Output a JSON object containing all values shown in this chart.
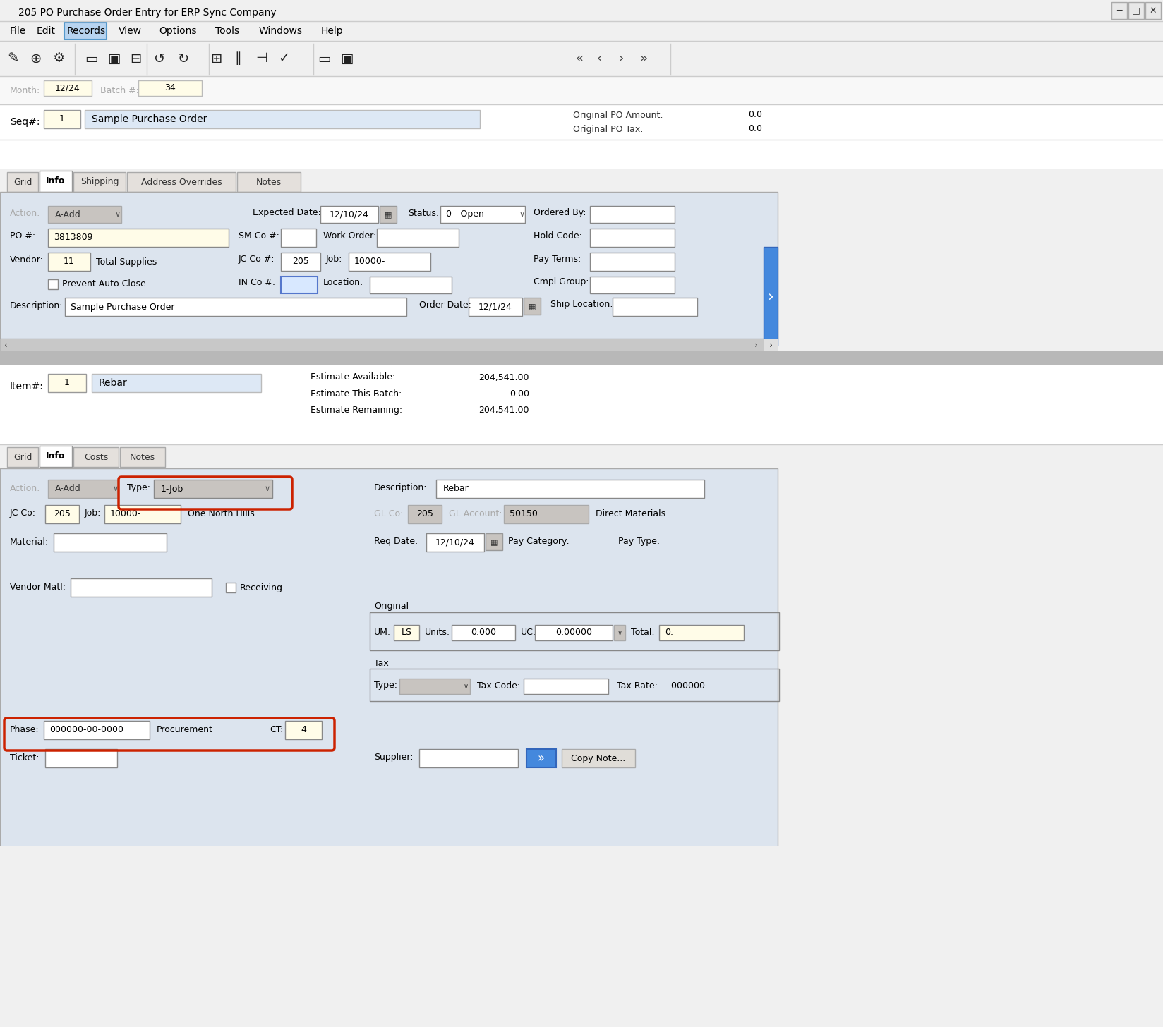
{
  "title": "205 PO Purchase Order Entry for ERP Sync Company",
  "menu_items": [
    "File",
    "Edit",
    "Records",
    "View",
    "Options",
    "Tools",
    "Windows",
    "Help"
  ],
  "active_menu": "Records",
  "month_val": "12/24",
  "batch_val": "34",
  "seq_val": "1",
  "seq_desc": "Sample Purchase Order",
  "orig_po_amount": "0.0",
  "orig_po_tax": "0.0",
  "header_tabs": [
    "Grid",
    "Info",
    "Shipping",
    "Address Overrides",
    "Notes"
  ],
  "active_header_tab": "Info",
  "action_val": "A-Add",
  "expected_date": "12/10/24",
  "status_val": "0 - Open",
  "ordered_by": "",
  "po_num": "3813809",
  "sm_co": "",
  "work_order": "",
  "hold_code": "",
  "vendor_num": "11",
  "vendor_name": "Total Supplies",
  "jc_co": "205",
  "job": "10000-",
  "pay_terms": "",
  "prevent_auto_close": false,
  "in_co": "",
  "location": "",
  "cmpl_group": "",
  "description": "Sample Purchase Order",
  "order_date": "12/1/24",
  "ship_location": "",
  "item_num": "1",
  "item_desc": "Rebar",
  "estimate_available": "204,541.00",
  "estimate_this_batch": "0.00",
  "estimate_remaining": "204,541.00",
  "detail_tabs": [
    "Grid",
    "Info",
    "Costs",
    "Notes"
  ],
  "active_detail_tab": "Info",
  "detail_action": "A-Add",
  "detail_type": "1-Job",
  "detail_description": "Rebar",
  "jc_co2": "205",
  "job2": "10000-",
  "job_name": "One North Hills",
  "gl_co": "205",
  "gl_account": "50150.",
  "gl_desc": "Direct Materials",
  "material": "",
  "req_date": "12/10/24",
  "pay_category": "",
  "pay_type": "",
  "vendor_matl": "",
  "receiving": false,
  "um": "LS",
  "units": "0.000",
  "uc": "0.00000",
  "total": "0.",
  "tax_type": "",
  "tax_code": "",
  "tax_rate": ".000000",
  "phase": "000000-00-0000",
  "phase_desc": "Procurement",
  "ct": "4",
  "ticket": "",
  "supplier": "",
  "bg_color": "#f0f0f0",
  "field_bg_yellow": "#fffce8",
  "field_bg_white": "#ffffff",
  "field_bg_gray": "#d4d0c8",
  "panel_bg": "#dce4ee",
  "tab_active_bg": "#ffffff",
  "tab_inactive_bg": "#e0ddd8",
  "border_color": "#888888",
  "text_color": "#000000",
  "label_gray": "#777777",
  "highlight_red": "#cc2200",
  "title_bar_bg": "#ffffff",
  "menu_bar_bg": "#f0f0f0",
  "records_tab_bg": "#b8d4f0",
  "toolbar_bg": "#f0f0f0",
  "scrollbar_bg": "#c8c8c8",
  "blue_btn": "#3377cc",
  "separator_bg": "#b0b0b0"
}
